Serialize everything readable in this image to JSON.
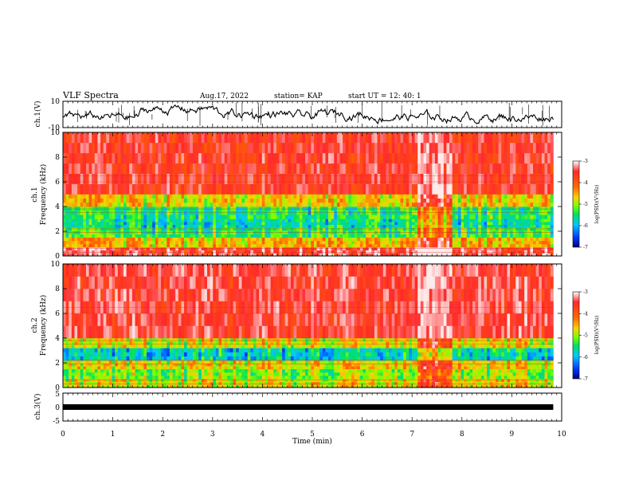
{
  "header": {
    "title": "VLF Spectra",
    "date": "Aug.17, 2022",
    "station": "station= KAP",
    "start_ut": "start  UT  =   12: 40: 1"
  },
  "panels": {
    "ch1_wave": {
      "ylabel": "ch.1(V)",
      "ytick_top": "10",
      "ytick_bottom": "-10"
    },
    "ch1_spec": {
      "ylabel_line1": "ch.1",
      "ylabel_line2": "Frequency  (kHz)"
    },
    "ch2_spec": {
      "ylabel_line1": "ch.2",
      "ylabel_line2": "Frequency  (kHz)"
    },
    "ch3_wave": {
      "ylabel": "ch.3(V)",
      "ytick_top": "5",
      "ytick_mid": "0",
      "ytick_bottom": "-5"
    }
  },
  "colorbar": {
    "label": "log(PSD)(V²/Hz)",
    "ticks": [
      "-3",
      "-4",
      "-5",
      "-6",
      "-7"
    ],
    "colors": [
      "#ffffff",
      "#ff2a2a",
      "#ff6a00",
      "#ffd000",
      "#7cff00",
      "#00e060",
      "#00c8ff",
      "#0040ff",
      "#000080"
    ]
  },
  "xaxis": {
    "label": "Time  (min)",
    "ticks": [
      "0",
      "1",
      "2",
      "3",
      "4",
      "5",
      "6",
      "7",
      "8",
      "9",
      "10"
    ]
  },
  "chart_data": {
    "type": "heatmap",
    "title": "VLF Spectra",
    "xlabel": "Time  (min)",
    "xlim": [
      0,
      10
    ],
    "data_end_min": 9.83,
    "panels": [
      {
        "name": "ch.1(V)",
        "type": "line",
        "ylim": [
          -10,
          10
        ],
        "yticks": [
          10,
          -10
        ]
      },
      {
        "name": "ch.1",
        "type": "heatmap",
        "ylabel": "Frequency  (kHz)",
        "ylim": [
          0,
          10
        ],
        "yticks": [
          0,
          2,
          4,
          6,
          8,
          10
        ],
        "band_edges_khz": [
          0,
          0.7,
          1.5,
          2.3,
          3.0,
          4.0,
          5.0,
          10
        ],
        "typical_log_psd": [
          -3.5,
          -4.6,
          -5.4,
          -5.7,
          -5.5,
          -4.7,
          -3.6
        ],
        "strong_interval_min": [
          7.1,
          7.75
        ]
      },
      {
        "name": "ch.2",
        "type": "heatmap",
        "ylabel": "Frequency  (kHz)",
        "ylim": [
          0,
          10
        ],
        "yticks": [
          0,
          2,
          4,
          6,
          8,
          10
        ],
        "band_edges_khz": [
          0,
          0.7,
          1.5,
          2.2,
          3.2,
          4.0,
          10
        ],
        "typical_log_psd": [
          -4.8,
          -5.1,
          -4.7,
          -5.8,
          -4.8,
          -3.5
        ],
        "strong_interval_min": [
          7.1,
          7.75
        ]
      },
      {
        "name": "ch.3(V)",
        "type": "line",
        "ylim": [
          -5,
          5
        ],
        "yticks": [
          5,
          0,
          -5
        ],
        "approx_level_V": 0
      }
    ],
    "colorbar": {
      "label": "log(PSD)(V²/Hz)",
      "range": [
        -7,
        -3
      ]
    }
  }
}
